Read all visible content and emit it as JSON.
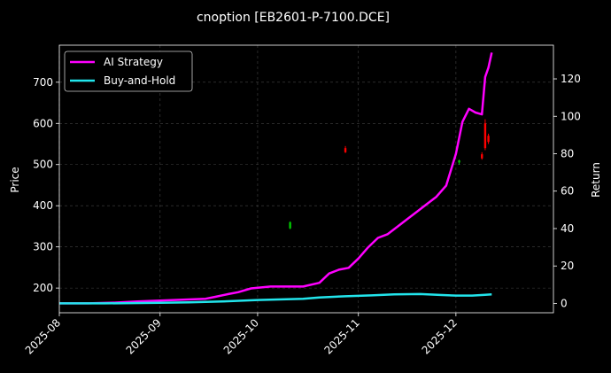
{
  "chart_data": {
    "type": "line",
    "title": "cnoption [EB2601-P-7100.DCE]",
    "ylabel_left": "Price",
    "ylabel_right": "Return",
    "xlim": [
      "2025-08-01",
      "2025-12-31"
    ],
    "ylim_left": [
      140,
      790
    ],
    "ylim_right": [
      -5,
      138
    ],
    "x_ticks": [
      "2025-08",
      "2025-09",
      "2025-10",
      "2025-11",
      "2025-12"
    ],
    "x_tick_dates": [
      "2025-08-01",
      "2025-09-01",
      "2025-10-01",
      "2025-11-01",
      "2025-12-01"
    ],
    "y_ticks_left": [
      200,
      300,
      400,
      500,
      600,
      700
    ],
    "y_ticks_right": [
      0,
      20,
      40,
      60,
      80,
      100,
      120
    ],
    "grid": true,
    "legend_position": "top-left",
    "colors": {
      "background": "#000000",
      "ai_strategy": "#ff00ff",
      "buy_and_hold": "#22e5ec",
      "candle_up": "#00c800",
      "candle_down": "#ff0000",
      "grid": "#444444"
    },
    "series": [
      {
        "name": "AI Strategy",
        "axis": "right",
        "points": [
          [
            "2025-08-01",
            0
          ],
          [
            "2025-08-10",
            0
          ],
          [
            "2025-08-18",
            0.4
          ],
          [
            "2025-08-25",
            1
          ],
          [
            "2025-09-01",
            1.5
          ],
          [
            "2025-09-08",
            2
          ],
          [
            "2025-09-15",
            2.5
          ],
          [
            "2025-09-18",
            3.5
          ],
          [
            "2025-09-22",
            5
          ],
          [
            "2025-09-25",
            6
          ],
          [
            "2025-09-29",
            8
          ],
          [
            "2025-10-05",
            9
          ],
          [
            "2025-10-10",
            9
          ],
          [
            "2025-10-15",
            9
          ],
          [
            "2025-10-20",
            11
          ],
          [
            "2025-10-23",
            16
          ],
          [
            "2025-10-26",
            18
          ],
          [
            "2025-10-29",
            19
          ],
          [
            "2025-11-01",
            24
          ],
          [
            "2025-11-04",
            30
          ],
          [
            "2025-11-07",
            35
          ],
          [
            "2025-11-10",
            37
          ],
          [
            "2025-11-13",
            41
          ],
          [
            "2025-11-16",
            45
          ],
          [
            "2025-11-19",
            49
          ],
          [
            "2025-11-22",
            53
          ],
          [
            "2025-11-25",
            57
          ],
          [
            "2025-11-28",
            63
          ],
          [
            "2025-12-01",
            80
          ],
          [
            "2025-12-03",
            97
          ],
          [
            "2025-12-05",
            104
          ],
          [
            "2025-12-07",
            102
          ],
          [
            "2025-12-09",
            101
          ],
          [
            "2025-12-10",
            121
          ],
          [
            "2025-12-11",
            126
          ],
          [
            "2025-12-12",
            134
          ]
        ]
      },
      {
        "name": "Buy-and-Hold",
        "axis": "right",
        "points": [
          [
            "2025-08-01",
            0
          ],
          [
            "2025-08-15",
            0
          ],
          [
            "2025-09-01",
            0.3
          ],
          [
            "2025-09-10",
            0.6
          ],
          [
            "2025-09-20",
            1
          ],
          [
            "2025-10-01",
            1.8
          ],
          [
            "2025-10-15",
            2.5
          ],
          [
            "2025-10-20",
            3.2
          ],
          [
            "2025-10-28",
            3.8
          ],
          [
            "2025-11-05",
            4.3
          ],
          [
            "2025-11-12",
            4.8
          ],
          [
            "2025-11-20",
            5
          ],
          [
            "2025-11-26",
            4.5
          ],
          [
            "2025-12-01",
            4.2
          ],
          [
            "2025-12-06",
            4.2
          ],
          [
            "2025-12-10",
            4.6
          ],
          [
            "2025-12-12",
            4.8
          ]
        ]
      }
    ],
    "candles": [
      {
        "date": "2025-10-11",
        "open": 345,
        "close": 360,
        "high": 362,
        "low": 343
      },
      {
        "date": "2025-10-28",
        "open": 540,
        "close": 530,
        "high": 545,
        "low": 528
      },
      {
        "date": "2025-12-02",
        "open": 505,
        "close": 510,
        "high": 512,
        "low": 500
      },
      {
        "date": "2025-12-09",
        "open": 525,
        "close": 515,
        "high": 530,
        "low": 512
      },
      {
        "date": "2025-12-10",
        "open": 600,
        "close": 540,
        "high": 610,
        "low": 535
      },
      {
        "date": "2025-12-11",
        "open": 570,
        "close": 555,
        "high": 575,
        "low": 550
      }
    ]
  },
  "legend": {
    "items": [
      "AI Strategy",
      "Buy-and-Hold"
    ]
  }
}
